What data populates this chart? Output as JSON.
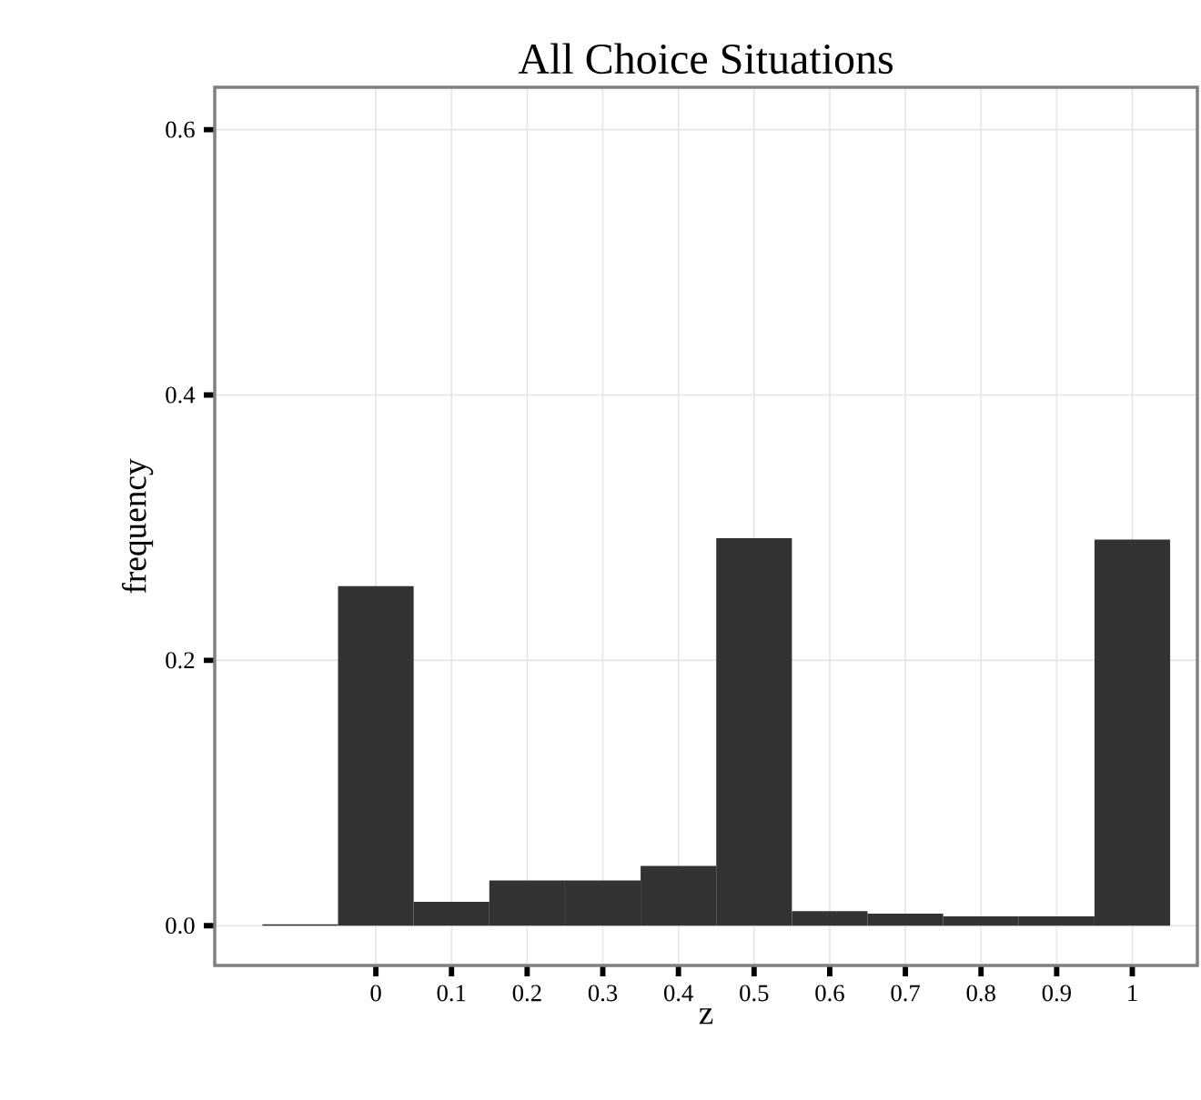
{
  "chart_data": {
    "type": "histogram",
    "title": "All Choice Situations",
    "xlabel": "z",
    "ylabel": "frequency",
    "bins": [
      -0.15,
      -0.05,
      0.05,
      0.15,
      0.25,
      0.35,
      0.45,
      0.55,
      0.65,
      0.75,
      0.85,
      0.95,
      1.05
    ],
    "values": [
      0.001,
      0.256,
      0.018,
      0.034,
      0.034,
      0.045,
      0.292,
      0.011,
      0.009,
      0.007,
      0.007,
      0.291
    ],
    "color": "#333333",
    "xlim": [
      -0.213,
      1.086
    ],
    "ylim": [
      -0.03,
      0.632
    ],
    "xticks": [
      0,
      0.1,
      0.2,
      0.3,
      0.4,
      0.5,
      0.6,
      0.7,
      0.8,
      0.9,
      1
    ],
    "yticks": [
      {
        "value": 0,
        "label": "0.0"
      },
      {
        "value": 0.2,
        "label": "0.2"
      },
      {
        "value": 0.4,
        "label": "0.4"
      },
      {
        "value": 0.6,
        "label": "0.6"
      }
    ],
    "grid": true
  }
}
